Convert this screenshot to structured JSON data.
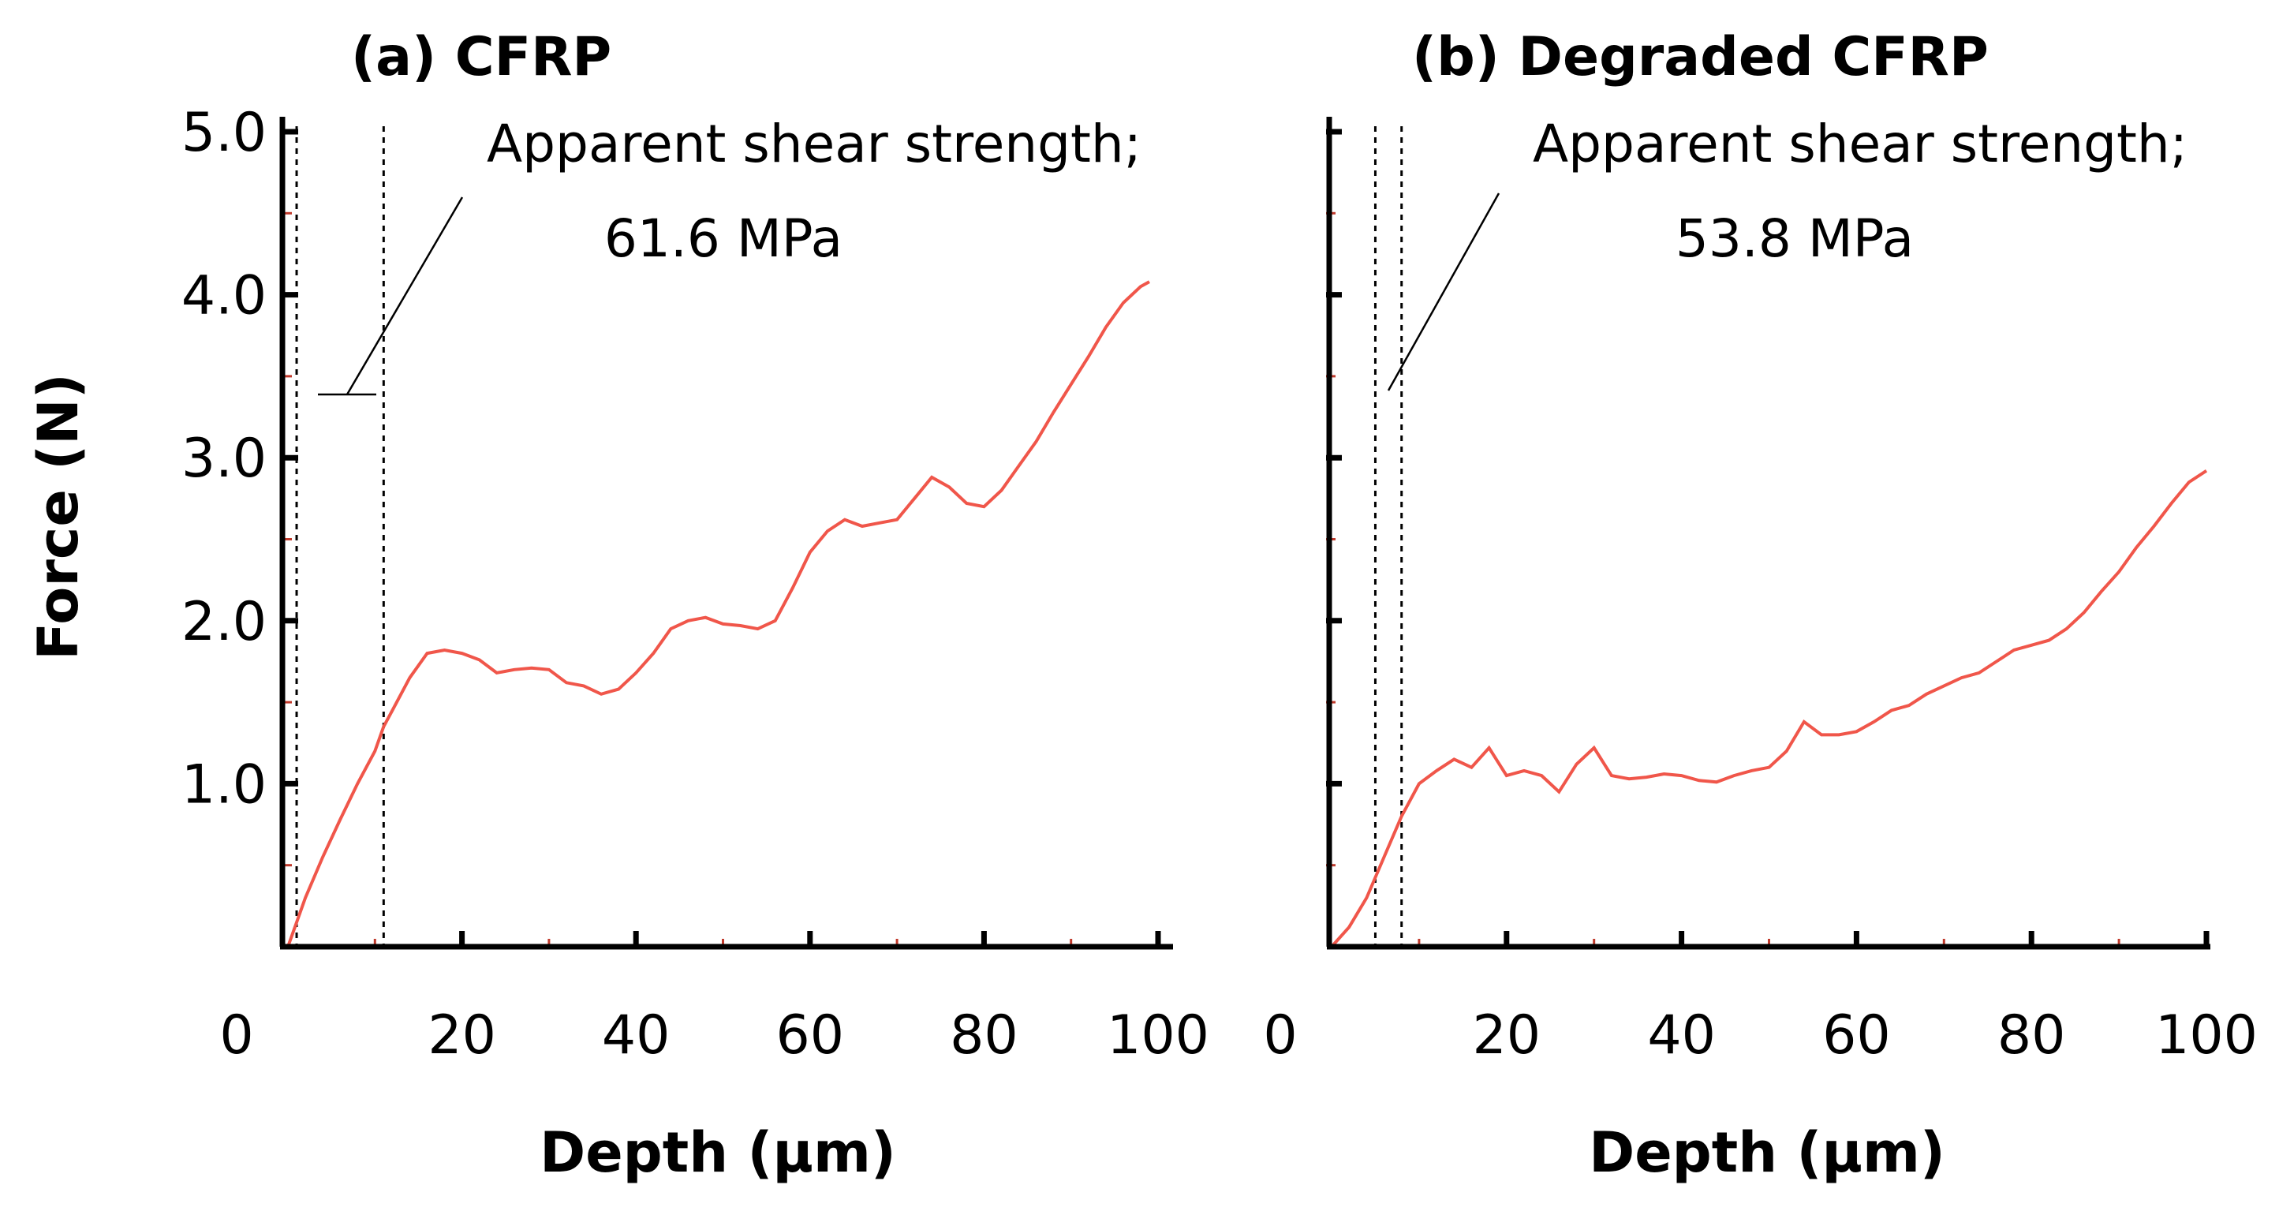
{
  "chart_data": [
    {
      "type": "line",
      "title": "(a)  CFRP",
      "xlabel": "Depth (μm)",
      "ylabel": "Force (N)",
      "xlim": [
        0,
        100
      ],
      "ylim": [
        0,
        5.0
      ],
      "x_ticks": [
        "0",
        "20",
        "40",
        "60",
        "80",
        "100"
      ],
      "y_ticks": [
        "1.0",
        "2.0",
        "3.0",
        "4.0",
        "5.0"
      ],
      "annotation_line1": "Apparent shear strength;",
      "annotation_line2": "61.6 MPa",
      "dashed_lines_x": [
        1,
        11
      ],
      "series": [
        {
          "name": "CFRP",
          "color": "#f0564a",
          "x": [
            0,
            2,
            4,
            6,
            8,
            10,
            11,
            12,
            14,
            16,
            18,
            20,
            22,
            24,
            26,
            28,
            30,
            32,
            34,
            36,
            38,
            40,
            42,
            44,
            46,
            48,
            50,
            52,
            54,
            56,
            58,
            60,
            62,
            64,
            66,
            68,
            70,
            72,
            74,
            76,
            78,
            80,
            82,
            84,
            86,
            88,
            90,
            92,
            94,
            96,
            98,
            99
          ],
          "y": [
            0,
            0.3,
            0.55,
            0.78,
            1.0,
            1.2,
            1.35,
            1.45,
            1.65,
            1.8,
            1.82,
            1.8,
            1.76,
            1.68,
            1.7,
            1.71,
            1.7,
            1.62,
            1.6,
            1.55,
            1.58,
            1.68,
            1.8,
            1.95,
            2.0,
            2.02,
            1.98,
            1.97,
            1.95,
            2.0,
            2.2,
            2.42,
            2.55,
            2.62,
            2.58,
            2.6,
            2.62,
            2.75,
            2.88,
            2.82,
            2.72,
            2.7,
            2.8,
            2.95,
            3.1,
            3.28,
            3.45,
            3.62,
            3.8,
            3.95,
            4.05,
            4.08
          ]
        }
      ]
    },
    {
      "type": "line",
      "title": "(b) Degraded CFRP",
      "xlabel": "Depth (μm)",
      "ylabel": "",
      "xlim": [
        0,
        100
      ],
      "ylim": [
        0,
        5.0
      ],
      "x_ticks": [
        "0",
        "20",
        "40",
        "60",
        "80",
        "100"
      ],
      "y_ticks": [],
      "annotation_line1": "Apparent shear strength;",
      "annotation_line2": "53.8 MPa",
      "dashed_lines_x": [
        5,
        8
      ],
      "series": [
        {
          "name": "Degraded CFRP",
          "color": "#f0564a",
          "x": [
            0,
            2,
            4,
            6,
            8,
            10,
            12,
            14,
            16,
            18,
            20,
            22,
            24,
            26,
            28,
            30,
            32,
            34,
            36,
            38,
            40,
            42,
            44,
            46,
            48,
            50,
            52,
            54,
            56,
            58,
            60,
            62,
            64,
            66,
            68,
            70,
            72,
            74,
            76,
            78,
            80,
            82,
            84,
            86,
            88,
            90,
            92,
            94,
            96,
            98,
            100
          ],
          "y": [
            0,
            0.12,
            0.3,
            0.55,
            0.8,
            1.0,
            1.08,
            1.15,
            1.1,
            1.22,
            1.05,
            1.08,
            1.05,
            0.95,
            1.12,
            1.22,
            1.05,
            1.03,
            1.04,
            1.06,
            1.05,
            1.02,
            1.01,
            1.05,
            1.08,
            1.1,
            1.2,
            1.38,
            1.3,
            1.3,
            1.32,
            1.38,
            1.45,
            1.48,
            1.55,
            1.6,
            1.65,
            1.68,
            1.75,
            1.82,
            1.85,
            1.88,
            1.95,
            2.05,
            2.18,
            2.3,
            2.45,
            2.58,
            2.72,
            2.85,
            2.92
          ]
        }
      ]
    }
  ]
}
